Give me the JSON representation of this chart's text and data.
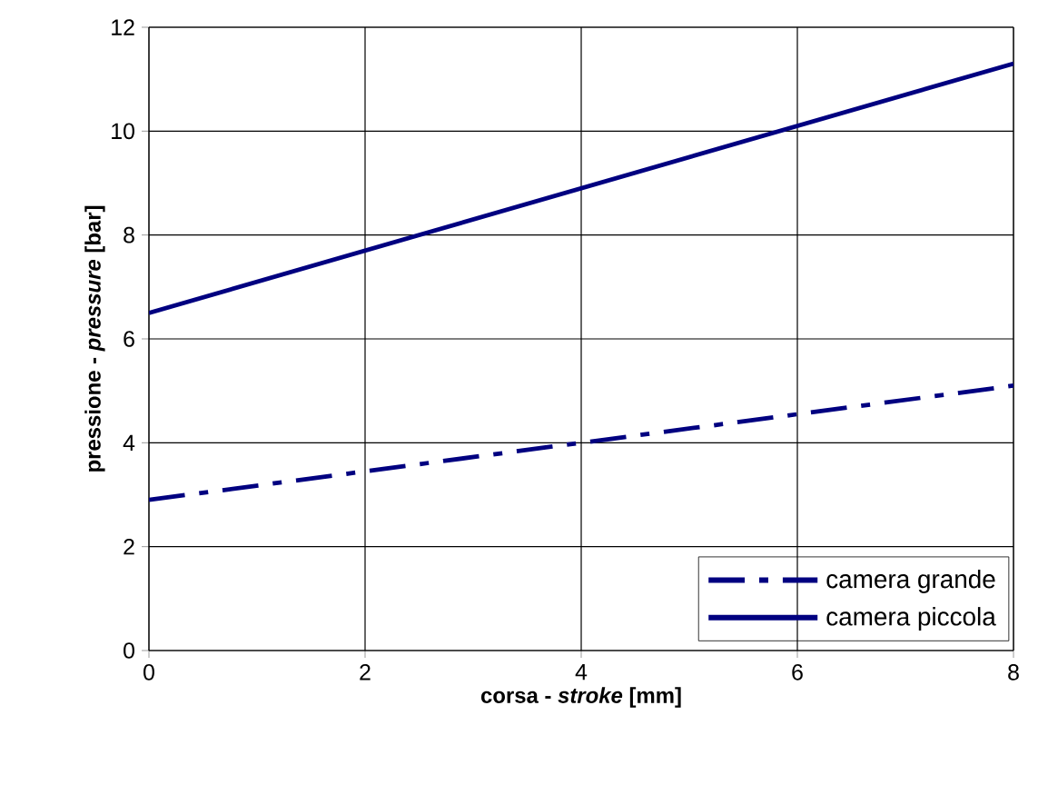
{
  "chart_data": {
    "type": "line",
    "xlabel": "corsa - *stroke* [mm]",
    "ylabel": "pressione - *pressure* [bar]",
    "x": [
      0,
      8
    ],
    "series": [
      {
        "name": "camera grande",
        "color": "#000080",
        "line_style": "dashed",
        "values": [
          2.9,
          5.1
        ]
      },
      {
        "name": "camera piccola",
        "color": "#000080",
        "line_style": "solid",
        "values": [
          6.5,
          11.3
        ]
      }
    ],
    "xlim": [
      0,
      8
    ],
    "ylim": [
      0,
      12
    ],
    "xticks": [
      0,
      2,
      4,
      6,
      8
    ],
    "yticks": [
      0,
      2,
      4,
      6,
      8,
      10,
      12
    ],
    "grid": true,
    "legend": "bottom right",
    "marker": "none"
  }
}
